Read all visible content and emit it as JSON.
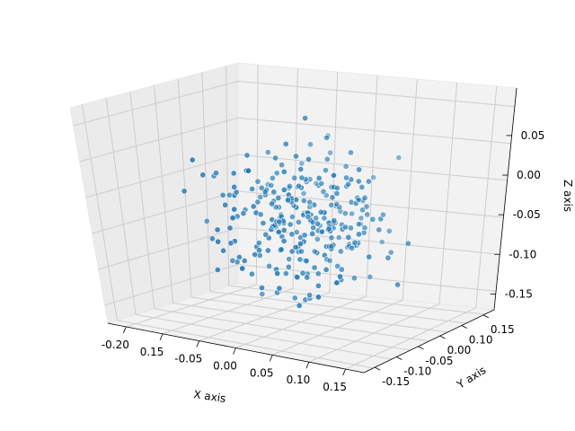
{
  "chart_data": {
    "type": "scatter",
    "projection": "3d",
    "title": "",
    "xlabel": "X axis",
    "ylabel": "Y axis",
    "zlabel": "Z axis",
    "x_ticks": [
      "-0.20",
      "0.15",
      "-0.05",
      "0.00",
      "0.05",
      "0.10",
      "0.15"
    ],
    "y_ticks": [
      "-0.15",
      "-0.10",
      "-0.05",
      "0.00",
      "0.10",
      "0.15"
    ],
    "z_ticks": [
      "-0.15",
      "-0.10",
      "-0.05",
      "0.00",
      "0.05"
    ],
    "xlim": [
      -0.2,
      0.18
    ],
    "ylim": [
      -0.18,
      0.18
    ],
    "zlim": [
      -0.18,
      0.12
    ],
    "grid": true,
    "marker_color": "#1f77b4",
    "pane_color": "#f2f2f2",
    "n_points": 300
  }
}
